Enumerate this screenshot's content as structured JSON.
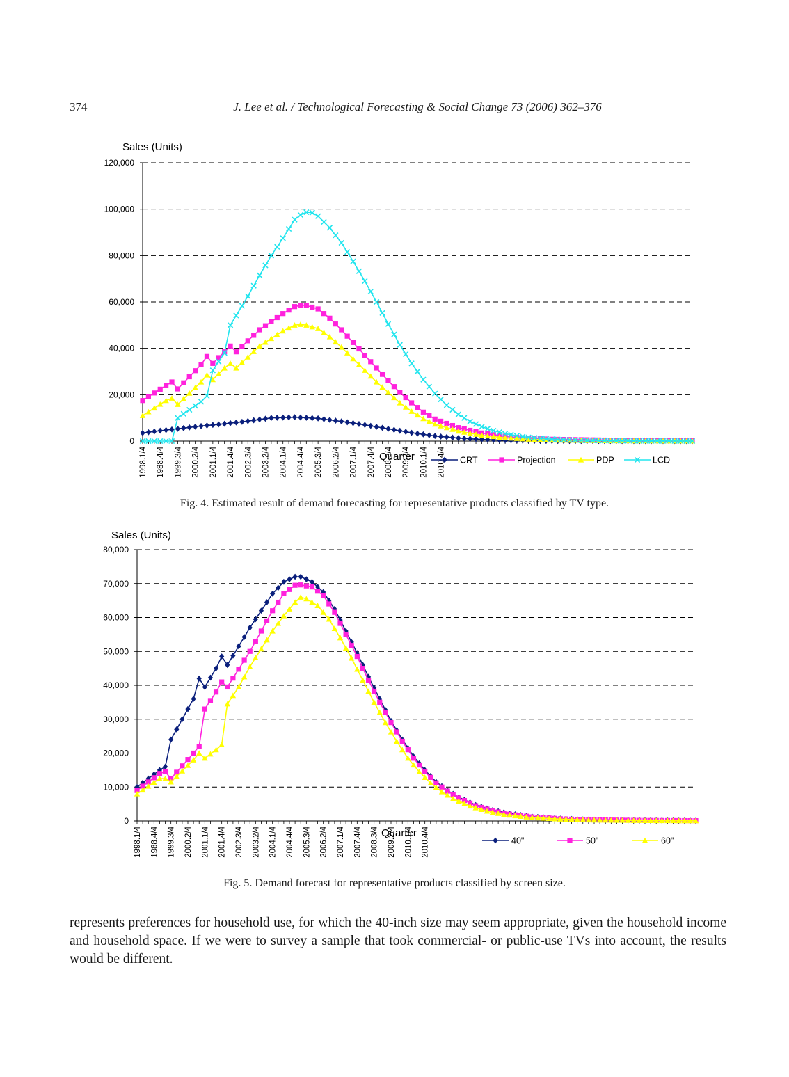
{
  "header": {
    "page_number": "374",
    "journal": "J. Lee et al. / Technological Forecasting & Social Change 73 (2006) 362–376"
  },
  "chart_data": [
    {
      "type": "line",
      "ylabel": "Sales (Units)",
      "xlabel": "Quarter",
      "ylim": [
        0,
        120000
      ],
      "yticks": [
        "0",
        "20,000",
        "40,000",
        "60,000",
        "80,000",
        "100,000",
        "120,000"
      ],
      "grid": "horizontal dashed",
      "legend": "bottom-right",
      "x_tick_labels": [
        "1998.1/4",
        "1988.4/4",
        "1999.3/4",
        "2000.2/4",
        "2001.1/4",
        "2001.4/4",
        "2002.3/4",
        "2003.2/4",
        "2004.1/4",
        "2004.4/4",
        "2005.3/4",
        "2006.2/4",
        "2007.1/4",
        "2007.4/4",
        "2008.3/4",
        "2009.2/4",
        "2010.1/4",
        "2010.4/4"
      ],
      "n_points": 95,
      "series": [
        {
          "name": "CRT",
          "color": "#0a1f7c",
          "marker": "diamond",
          "keypoints": [
            [
              0,
              3500
            ],
            [
              3,
              4500
            ],
            [
              6,
              5300
            ],
            [
              10,
              6500
            ],
            [
              13,
              7200
            ],
            [
              17,
              8300
            ],
            [
              22,
              10000
            ],
            [
              26,
              10300
            ],
            [
              30,
              9800
            ],
            [
              34,
              8500
            ],
            [
              38,
              7000
            ],
            [
              42,
              5300
            ],
            [
              46,
              3600
            ],
            [
              50,
              2200
            ],
            [
              54,
              1300
            ],
            [
              58,
              700
            ],
            [
              62,
              350
            ],
            [
              68,
              120
            ],
            [
              75,
              40
            ],
            [
              94,
              0
            ]
          ]
        },
        {
          "name": "Projection",
          "color": "#ff22dd",
          "marker": "square",
          "keypoints": [
            [
              0,
              17500
            ],
            [
              4,
              24000
            ],
            [
              5,
              25500
            ],
            [
              6,
              22500
            ],
            [
              10,
              33000
            ],
            [
              11,
              36500
            ],
            [
              12,
              33500
            ],
            [
              14,
              38500
            ],
            [
              15,
              41000
            ],
            [
              16,
              38500
            ],
            [
              20,
              48000
            ],
            [
              24,
              55000
            ],
            [
              26,
              58000
            ],
            [
              27,
              58500
            ],
            [
              28,
              58500
            ],
            [
              30,
              57000
            ],
            [
              32,
              53000
            ],
            [
              34,
              48000
            ],
            [
              36,
              42500
            ],
            [
              38,
              37000
            ],
            [
              40,
              31500
            ],
            [
              42,
              26000
            ],
            [
              44,
              21000
            ],
            [
              46,
              16500
            ],
            [
              48,
              12500
            ],
            [
              50,
              9500
            ],
            [
              54,
              5800
            ],
            [
              58,
              3500
            ],
            [
              62,
              2000
            ],
            [
              66,
              1200
            ],
            [
              70,
              800
            ],
            [
              80,
              400
            ],
            [
              94,
              200
            ]
          ]
        },
        {
          "name": "PDP",
          "color": "#ffff00",
          "marker": "triangle",
          "keypoints": [
            [
              0,
              11000
            ],
            [
              4,
              17500
            ],
            [
              5,
              18500
            ],
            [
              6,
              15800
            ],
            [
              10,
              25500
            ],
            [
              11,
              28500
            ],
            [
              12,
              26500
            ],
            [
              14,
              31500
            ],
            [
              15,
              33500
            ],
            [
              16,
              31500
            ],
            [
              20,
              41000
            ],
            [
              24,
              47500
            ],
            [
              26,
              50000
            ],
            [
              27,
              50300
            ],
            [
              28,
              50000
            ],
            [
              30,
              48500
            ],
            [
              32,
              45000
            ],
            [
              34,
              40500
            ],
            [
              36,
              35500
            ],
            [
              38,
              30500
            ],
            [
              40,
              25500
            ],
            [
              42,
              21000
            ],
            [
              44,
              16500
            ],
            [
              46,
              12800
            ],
            [
              48,
              9700
            ],
            [
              50,
              7300
            ],
            [
              54,
              4300
            ],
            [
              58,
              2500
            ],
            [
              62,
              1400
            ],
            [
              66,
              800
            ],
            [
              70,
              450
            ],
            [
              80,
              150
            ],
            [
              94,
              50
            ]
          ]
        },
        {
          "name": "LCD",
          "color": "#22e5ee",
          "marker": "x",
          "keypoints": [
            [
              0,
              0
            ],
            [
              4,
              0
            ],
            [
              5,
              0
            ],
            [
              6,
              10000
            ],
            [
              10,
              17000
            ],
            [
              11,
              19500
            ],
            [
              12,
              30500
            ],
            [
              14,
              38000
            ],
            [
              15,
              50000
            ],
            [
              18,
              62500
            ],
            [
              20,
              71500
            ],
            [
              22,
              80000
            ],
            [
              24,
              87500
            ],
            [
              26,
              95500
            ],
            [
              27,
              97500
            ],
            [
              28,
              98700
            ],
            [
              29,
              98500
            ],
            [
              30,
              97000
            ],
            [
              32,
              92000
            ],
            [
              34,
              85500
            ],
            [
              36,
              77500
            ],
            [
              38,
              69000
            ],
            [
              40,
              60000
            ],
            [
              42,
              50500
            ],
            [
              44,
              41500
            ],
            [
              46,
              33500
            ],
            [
              48,
              26500
            ],
            [
              50,
              20500
            ],
            [
              52,
              15500
            ],
            [
              54,
              11500
            ],
            [
              56,
              8500
            ],
            [
              58,
              6200
            ],
            [
              60,
              4500
            ],
            [
              62,
              3200
            ],
            [
              64,
              2300
            ],
            [
              66,
              1600
            ],
            [
              70,
              800
            ],
            [
              75,
              300
            ],
            [
              85,
              80
            ],
            [
              94,
              20
            ]
          ]
        }
      ]
    },
    {
      "type": "line",
      "ylabel": "Sales (Units)",
      "xlabel": "Quarter",
      "ylim": [
        0,
        80000
      ],
      "yticks": [
        "0",
        "10,000",
        "20,000",
        "30,000",
        "40,000",
        "50,000",
        "60,000",
        "70,000",
        "80,000"
      ],
      "grid": "horizontal dashed",
      "legend": "bottom-right",
      "x_tick_labels": [
        "1998.1/4",
        "1988.4/4",
        "1999.3/4",
        "2000.2/4",
        "2001.1/4",
        "2001.4/4",
        "2002.3/4",
        "2003.2/4",
        "2004.1/4",
        "2004.4/4",
        "2005.3/4",
        "2006.2/4",
        "2007.1/4",
        "2007.4/4",
        "2008.3/4",
        "2009.2/4",
        "2010.1/4",
        "2010.4/4"
      ],
      "n_points": 100,
      "series": [
        {
          "name": "40\"",
          "color": "#0a1f7c",
          "marker": "diamond",
          "keypoints": [
            [
              0,
              10000
            ],
            [
              4,
              15000
            ],
            [
              5,
              16000
            ],
            [
              6,
              24000
            ],
            [
              10,
              36000
            ],
            [
              11,
              42000
            ],
            [
              12,
              39500
            ],
            [
              14,
              45000
            ],
            [
              15,
              48500
            ],
            [
              16,
              46000
            ],
            [
              20,
              57000
            ],
            [
              24,
              67000
            ],
            [
              26,
              70500
            ],
            [
              28,
              72000
            ],
            [
              29,
              72000
            ],
            [
              31,
              70500
            ],
            [
              33,
              67500
            ],
            [
              35,
              62500
            ],
            [
              37,
              56000
            ],
            [
              39,
              49500
            ],
            [
              41,
              42500
            ],
            [
              43,
              36000
            ],
            [
              45,
              29500
            ],
            [
              47,
              24000
            ],
            [
              49,
              19000
            ],
            [
              51,
              15000
            ],
            [
              53,
              11500
            ],
            [
              55,
              9000
            ],
            [
              57,
              7000
            ],
            [
              60,
              4700
            ],
            [
              63,
              3200
            ],
            [
              66,
              2200
            ],
            [
              70,
              1300
            ],
            [
              75,
              700
            ],
            [
              80,
              400
            ],
            [
              90,
              200
            ],
            [
              99,
              100
            ]
          ]
        },
        {
          "name": "50\"",
          "color": "#ff22dd",
          "marker": "square",
          "keypoints": [
            [
              0,
              9000
            ],
            [
              4,
              14000
            ],
            [
              5,
              14500
            ],
            [
              6,
              12500
            ],
            [
              10,
              20000
            ],
            [
              11,
              22000
            ],
            [
              12,
              33000
            ],
            [
              14,
              38000
            ],
            [
              15,
              41000
            ],
            [
              16,
              39500
            ],
            [
              20,
              50000
            ],
            [
              24,
              62000
            ],
            [
              26,
              67000
            ],
            [
              28,
              69500
            ],
            [
              29,
              69600
            ],
            [
              31,
              69000
            ],
            [
              33,
              66500
            ],
            [
              35,
              61500
            ],
            [
              37,
              55000
            ],
            [
              39,
              48500
            ],
            [
              41,
              41500
            ],
            [
              43,
              35000
            ],
            [
              45,
              29000
            ],
            [
              47,
              23500
            ],
            [
              49,
              18500
            ],
            [
              51,
              14500
            ],
            [
              53,
              11200
            ],
            [
              55,
              8800
            ],
            [
              57,
              6800
            ],
            [
              60,
              4500
            ],
            [
              63,
              3000
            ],
            [
              66,
              2000
            ],
            [
              70,
              1200
            ],
            [
              75,
              650
            ],
            [
              80,
              350
            ],
            [
              90,
              150
            ],
            [
              99,
              80
            ]
          ]
        },
        {
          "name": "60\"",
          "color": "#ffff00",
          "marker": "triangle",
          "keypoints": [
            [
              0,
              8000
            ],
            [
              4,
              12500
            ],
            [
              5,
              12500
            ],
            [
              6,
              11500
            ],
            [
              10,
              18000
            ],
            [
              11,
              20000
            ],
            [
              12,
              18500
            ],
            [
              14,
              21000
            ],
            [
              15,
              22500
            ],
            [
              16,
              34500
            ],
            [
              18,
              39500
            ],
            [
              20,
              45500
            ],
            [
              24,
              56000
            ],
            [
              26,
              60500
            ],
            [
              28,
              64500
            ],
            [
              29,
              66000
            ],
            [
              30,
              65500
            ],
            [
              32,
              63500
            ],
            [
              34,
              59500
            ],
            [
              36,
              54000
            ],
            [
              38,
              48000
            ],
            [
              40,
              41500
            ],
            [
              42,
              35000
            ],
            [
              44,
              29000
            ],
            [
              46,
              23500
            ],
            [
              48,
              18500
            ],
            [
              50,
              14500
            ],
            [
              52,
              11200
            ],
            [
              54,
              8600
            ],
            [
              56,
              6600
            ],
            [
              59,
              4400
            ],
            [
              62,
              2900
            ],
            [
              65,
              1900
            ],
            [
              70,
              1000
            ],
            [
              75,
              550
            ],
            [
              80,
              300
            ],
            [
              90,
              120
            ],
            [
              99,
              60
            ]
          ]
        }
      ]
    }
  ],
  "captions": {
    "fig4": "Fig. 4. Estimated result of demand forecasting for representative products classified by TV type.",
    "fig5": "Fig. 5. Demand forecast for representative products classified by screen size."
  },
  "body_text": "represents preferences for household use, for which the 40-inch size may seem appropriate, given the household income and household space. If we were to survey a sample that took commercial- or public-use TVs into account, the results would be different."
}
